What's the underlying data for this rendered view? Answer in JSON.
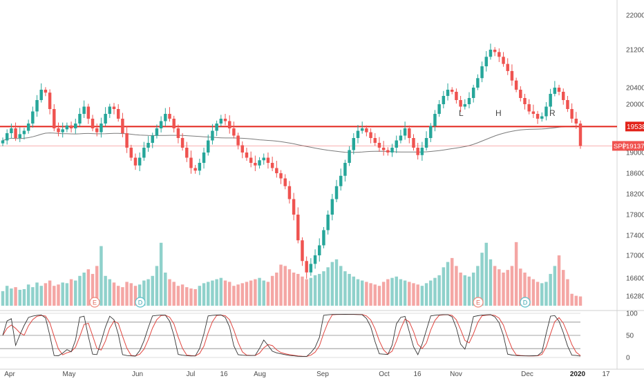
{
  "chart_data": {
    "type": "candlestick",
    "symbol": "SPP",
    "price_scale": {
      "ticks": [
        22000,
        21200,
        20400,
        20000,
        19000,
        18600,
        18200,
        17800,
        17400,
        17000,
        16600,
        16280
      ]
    },
    "x_axis": {
      "labels": [
        "Apr",
        "May",
        "Jun",
        "Jul",
        "16",
        "Aug",
        "Sep",
        "Oct",
        "16",
        "Nov",
        "Dec",
        "2020",
        "17"
      ],
      "bold_labels": [
        "2020"
      ]
    },
    "horizontal_line": {
      "value": 19538,
      "label": "19538",
      "color": "#e2231a"
    },
    "last_price": {
      "value": 19137,
      "label": "19137",
      "symbol_label": "SPP",
      "color": "#f05350"
    },
    "pattern_labels": [
      "L",
      "H",
      "R"
    ],
    "events": [
      {
        "type": "earnings",
        "label": "E"
      },
      {
        "type": "dividend",
        "label": "D"
      },
      {
        "type": "earnings",
        "label": "E"
      },
      {
        "type": "dividend",
        "label": "D"
      }
    ],
    "closes": [
      19250,
      19400,
      19500,
      19300,
      19380,
      19450,
      19600,
      19850,
      20100,
      20350,
      20280,
      19900,
      19500,
      19420,
      19480,
      19560,
      19500,
      19600,
      19800,
      19950,
      19700,
      19500,
      19420,
      19600,
      19800,
      19950,
      19900,
      19700,
      19400,
      19100,
      18900,
      18750,
      18900,
      19100,
      19200,
      19350,
      19500,
      19650,
      19800,
      19700,
      19500,
      19300,
      19100,
      18900,
      18700,
      18650,
      18800,
      19000,
      19250,
      19450,
      19600,
      19700,
      19650,
      19500,
      19350,
      19150,
      19000,
      18900,
      18800,
      18750,
      18850,
      18900,
      18800,
      18700,
      18600,
      18500,
      18350,
      18100,
      17800,
      17300,
      16900,
      16700,
      16850,
      17000,
      17200,
      17500,
      17800,
      18100,
      18350,
      18550,
      18800,
      19050,
      19300,
      19450,
      19500,
      19420,
      19300,
      19200,
      19100,
      19050,
      19000,
      19100,
      19250,
      19350,
      19500,
      19300,
      19100,
      18950,
      19100,
      19300,
      19550,
      19800,
      20000,
      20200,
      20350,
      20300,
      20100,
      19950,
      20000,
      20150,
      20400,
      20600,
      20850,
      21050,
      21200,
      21150,
      21050,
      20900,
      20750,
      20550,
      20350,
      20150,
      20000,
      19850,
      19800,
      19700,
      19750,
      19950,
      20250,
      20400,
      20300,
      20100,
      19900,
      19700,
      19600,
      19137
    ],
    "volumes": [
      22,
      30,
      26,
      28,
      24,
      25,
      32,
      28,
      35,
      30,
      34,
      38,
      30,
      32,
      35,
      34,
      40,
      38,
      45,
      50,
      55,
      48,
      60,
      90,
      45,
      40,
      35,
      30,
      28,
      36,
      34,
      30,
      32,
      38,
      40,
      45,
      60,
      95,
      50,
      40,
      36,
      30,
      32,
      28,
      26,
      25,
      30,
      34,
      36,
      38,
      40,
      42,
      38,
      36,
      30,
      32,
      34,
      36,
      38,
      40,
      42,
      38,
      36,
      45,
      50,
      62,
      60,
      55,
      50,
      48,
      44,
      40,
      42,
      46,
      48,
      52,
      58,
      66,
      70,
      60,
      52,
      48,
      44,
      40,
      38,
      36,
      34,
      32,
      30,
      36,
      40,
      42,
      44,
      40,
      38,
      36,
      34,
      32,
      30,
      34,
      38,
      42,
      46,
      58,
      66,
      72,
      60,
      50,
      46,
      44,
      50,
      60,
      80,
      95,
      70,
      60,
      55,
      50,
      54,
      60,
      96,
      56,
      50,
      44,
      40,
      36,
      34,
      36,
      48,
      60,
      76,
      54,
      40,
      18,
      15,
      14
    ],
    "stoch_scale": {
      "ticks": [
        100,
        50,
        0
      ]
    }
  }
}
